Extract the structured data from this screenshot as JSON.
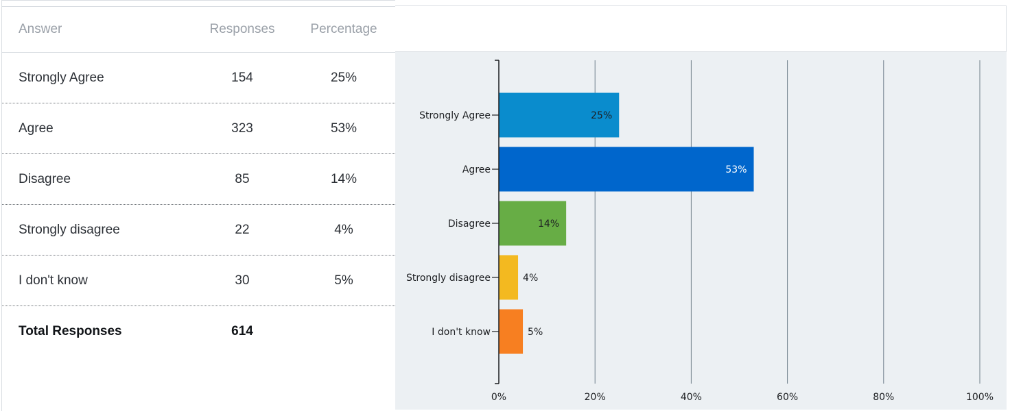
{
  "table": {
    "headers": {
      "answer": "Answer",
      "responses": "Responses",
      "percentage": "Percentage"
    },
    "rows": [
      {
        "answer": "Strongly Agree",
        "responses": "154",
        "percentage": "25%"
      },
      {
        "answer": "Agree",
        "responses": "323",
        "percentage": "53%"
      },
      {
        "answer": "Disagree",
        "responses": "85",
        "percentage": "14%"
      },
      {
        "answer": "Strongly disagree",
        "responses": "22",
        "percentage": "4%"
      },
      {
        "answer": "I don't know",
        "responses": "30",
        "percentage": "5%"
      }
    ],
    "total": {
      "label": "Total Responses",
      "value": "614"
    }
  },
  "chart_data": {
    "type": "bar",
    "orientation": "horizontal",
    "categories": [
      "Strongly Agree",
      "Agree",
      "Disagree",
      "Strongly disagree",
      "I don't know"
    ],
    "values": [
      25,
      53,
      14,
      4,
      5
    ],
    "data_labels": [
      "25%",
      "53%",
      "14%",
      "4%",
      "5%"
    ],
    "colors": [
      "#0a8ccd",
      "#0066cc",
      "#67ad45",
      "#f3b920",
      "#f77f21"
    ],
    "xlim": [
      0,
      100
    ],
    "xticks": [
      0,
      20,
      40,
      60,
      80,
      100
    ],
    "xtick_labels": [
      "0%",
      "20%",
      "40%",
      "60%",
      "80%",
      "100%"
    ],
    "grid": "vertical",
    "title": "",
    "xlabel": "",
    "ylabel": ""
  }
}
